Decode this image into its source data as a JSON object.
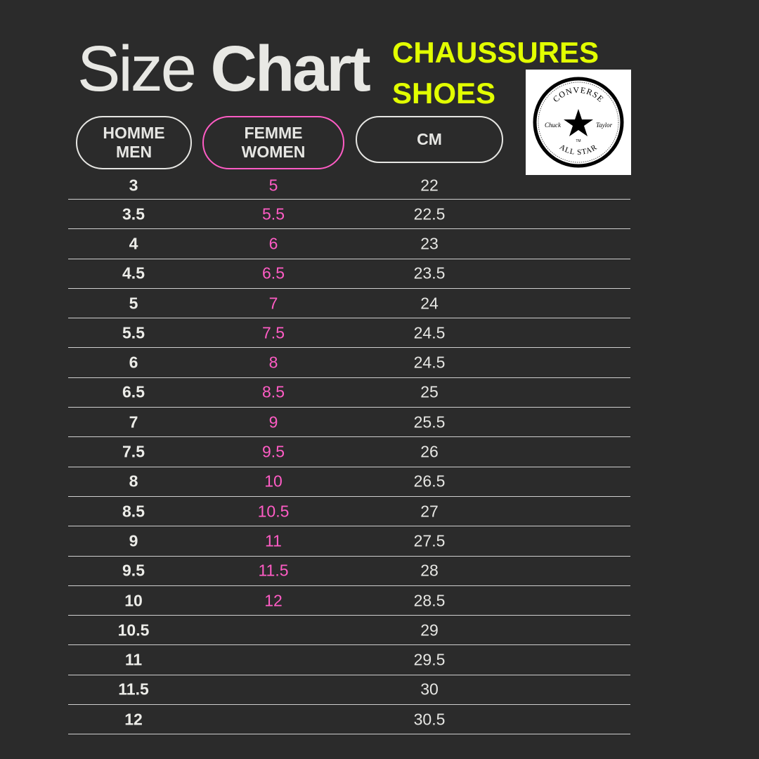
{
  "title": {
    "light": "Size",
    "bold": "Chart"
  },
  "subtitle": {
    "line1": "CHAUSSURES",
    "line2": "SHOES"
  },
  "logo": {
    "text_top": "CONVERSE",
    "text_bottom": "ALL STAR",
    "text_left": "Chuck",
    "text_right": "Taylor",
    "tm": "TM"
  },
  "colors": {
    "background": "#2b2b2b",
    "accent_pink": "#ff5cc5",
    "accent_yellow": "#e2ff00",
    "text": "#e6e6e3"
  },
  "headers": [
    {
      "line1": "HOMME",
      "line2": "MEN"
    },
    {
      "line1": "FEMME",
      "line2": "WOMEN"
    },
    {
      "line1": "CM",
      "line2": ""
    }
  ],
  "rows": [
    {
      "men": "3",
      "women": "5",
      "cm": "22"
    },
    {
      "men": "3.5",
      "women": "5.5",
      "cm": "22.5"
    },
    {
      "men": "4",
      "women": "6",
      "cm": "23"
    },
    {
      "men": "4.5",
      "women": "6.5",
      "cm": "23.5"
    },
    {
      "men": "5",
      "women": "7",
      "cm": "24"
    },
    {
      "men": "5.5",
      "women": "7.5",
      "cm": "24.5"
    },
    {
      "men": "6",
      "women": "8",
      "cm": "24.5"
    },
    {
      "men": "6.5",
      "women": "8.5",
      "cm": "25"
    },
    {
      "men": "7",
      "women": "9",
      "cm": "25.5"
    },
    {
      "men": "7.5",
      "women": "9.5",
      "cm": "26"
    },
    {
      "men": "8",
      "women": "10",
      "cm": "26.5"
    },
    {
      "men": "8.5",
      "women": "10.5",
      "cm": "27"
    },
    {
      "men": "9",
      "women": "11",
      "cm": "27.5"
    },
    {
      "men": "9.5",
      "women": "11.5",
      "cm": "28"
    },
    {
      "men": "10",
      "women": "12",
      "cm": "28.5"
    },
    {
      "men": "10.5",
      "women": "",
      "cm": "29"
    },
    {
      "men": "11",
      "women": "",
      "cm": "29.5"
    },
    {
      "men": "11.5",
      "women": "",
      "cm": "30"
    },
    {
      "men": "12",
      "women": "",
      "cm": "30.5"
    }
  ]
}
